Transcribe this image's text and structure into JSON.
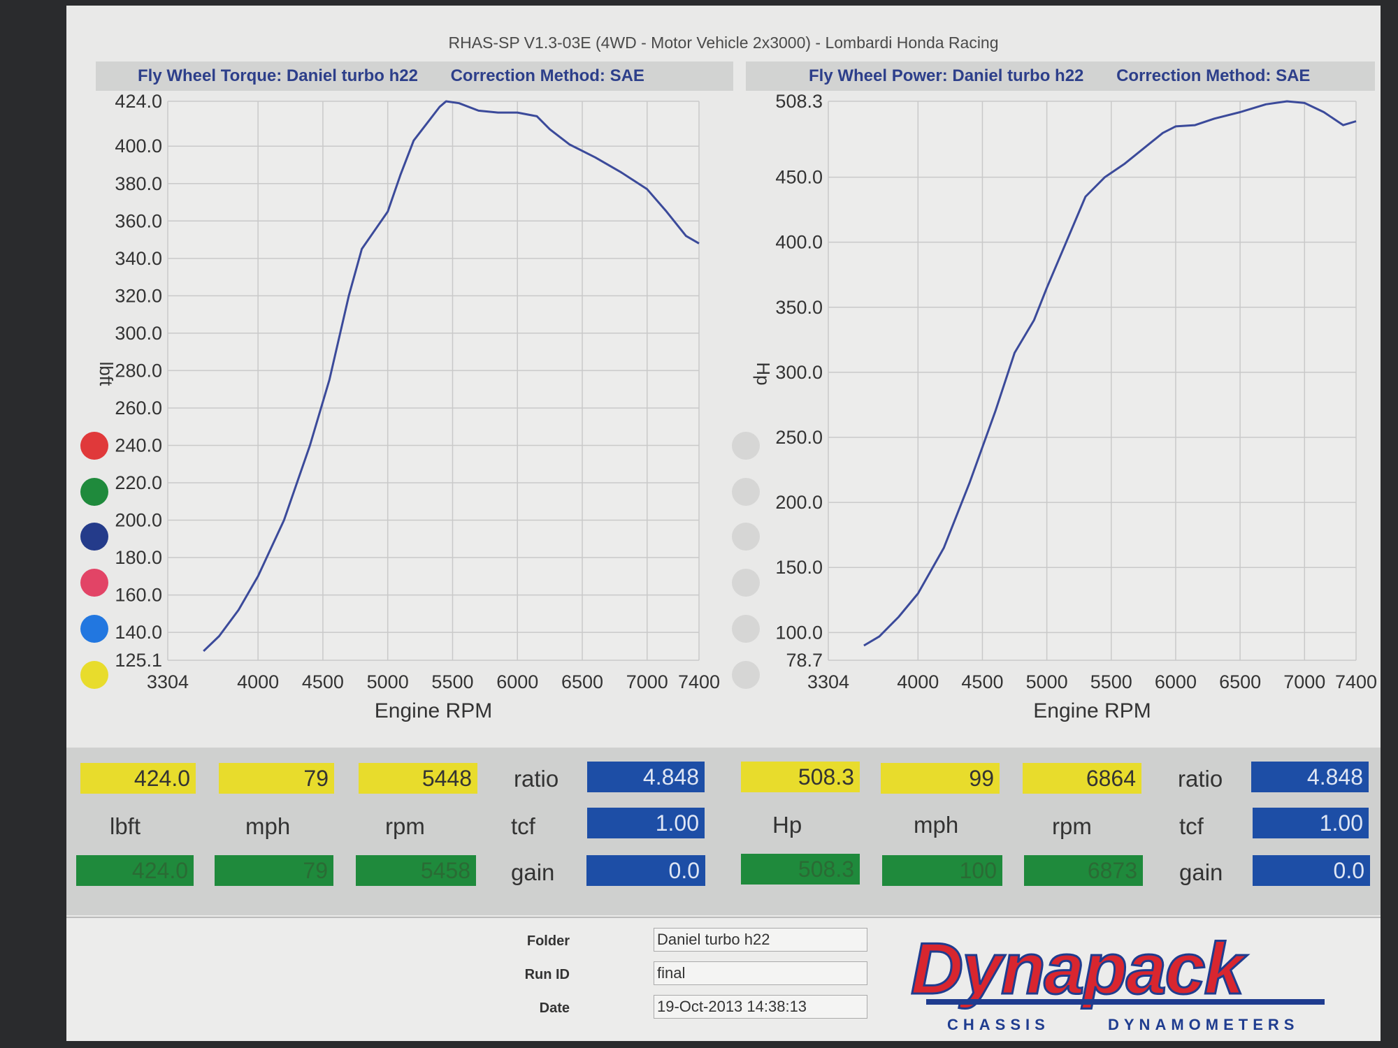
{
  "header": {
    "title": "RHAS-SP V1.3-03E (4WD - Motor Vehicle 2x3000) - Lombardi Honda Racing"
  },
  "colors": {
    "curve": "#3b4a9a",
    "grid": "#c9c9c9",
    "readout_yellow": "#e8dc2c",
    "readout_green": "#1f8a3c",
    "readout_blue": "#1d4ea6"
  },
  "chart_data": [
    {
      "type": "line",
      "heading": "Fly Wheel Torque: Daniel turbo h22",
      "correction": "Correction Method: SAE",
      "xlabel": "Engine RPM",
      "ylabel": "lbft",
      "xlim": [
        3304,
        7400
      ],
      "ylim": [
        125.1,
        424.0
      ],
      "x_ticks": [
        "3304",
        "4000",
        "4500",
        "5000",
        "5500",
        "6000",
        "6500",
        "7000",
        "7400"
      ],
      "x_tick_values": [
        3304,
        4000,
        4500,
        5000,
        5500,
        6000,
        6500,
        7000,
        7400
      ],
      "y_ticks": [
        "125.1",
        "140.0",
        "160.0",
        "180.0",
        "200.0",
        "220.0",
        "240.0",
        "260.0",
        "280.0",
        "300.0",
        "320.0",
        "340.0",
        "360.0",
        "380.0",
        "400.0",
        "424.0"
      ],
      "y_tick_values": [
        125.1,
        140,
        160,
        180,
        200,
        220,
        240,
        260,
        280,
        300,
        320,
        340,
        360,
        380,
        400,
        424
      ],
      "series": [
        {
          "x": [
            3580,
            3700,
            3850,
            4000,
            4200,
            4400,
            4550,
            4700,
            4800,
            4900,
            5000,
            5100,
            5200,
            5300,
            5400,
            5450,
            5550,
            5700,
            5850,
            6000,
            6150,
            6250,
            6400,
            6600,
            6800,
            7000,
            7150,
            7300,
            7400
          ],
          "y": [
            130,
            138,
            152,
            170,
            200,
            240,
            275,
            320,
            345,
            355,
            365,
            385,
            403,
            412,
            421,
            424,
            423,
            419,
            418,
            418,
            416,
            409,
            401,
            394,
            386,
            377,
            365,
            352,
            348
          ]
        }
      ]
    },
    {
      "type": "line",
      "heading": "Fly Wheel Power: Daniel turbo h22",
      "correction": "Correction Method: SAE",
      "xlabel": "Engine RPM",
      "ylabel": "Hp",
      "xlim": [
        3304,
        7400
      ],
      "ylim": [
        78.7,
        508.3
      ],
      "x_ticks": [
        "3304",
        "4000",
        "4500",
        "5000",
        "5500",
        "6000",
        "6500",
        "7000",
        "7400"
      ],
      "x_tick_values": [
        3304,
        4000,
        4500,
        5000,
        5500,
        6000,
        6500,
        7000,
        7400
      ],
      "y_ticks": [
        "78.7",
        "100.0",
        "150.0",
        "200.0",
        "250.0",
        "300.0",
        "350.0",
        "400.0",
        "450.0",
        "508.3"
      ],
      "y_tick_values": [
        78.7,
        100,
        150,
        200,
        250,
        300,
        350,
        400,
        450,
        508.3
      ],
      "series": [
        {
          "x": [
            3580,
            3700,
            3850,
            4000,
            4200,
            4400,
            4600,
            4750,
            4900,
            5000,
            5150,
            5300,
            5450,
            5600,
            5750,
            5900,
            6000,
            6150,
            6300,
            6500,
            6700,
            6864,
            7000,
            7150,
            7300,
            7400
          ],
          "y": [
            90,
            97,
            112,
            130,
            165,
            215,
            270,
            315,
            340,
            365,
            400,
            435,
            450,
            460,
            472,
            484,
            489,
            490,
            495,
            500,
            506,
            508.3,
            507,
            500,
            490,
            493
          ]
        }
      ]
    }
  ],
  "readouts": {
    "torque": {
      "peak_value": "424.0",
      "peak_unit": "lbft",
      "mph": "79",
      "mph_unit": "mph",
      "rpm": "5448",
      "rpm_unit": "rpm",
      "ratio_label": "ratio",
      "ratio": "4.848",
      "tcf_label": "tcf",
      "tcf": "1.00",
      "gain_label": "gain",
      "gain": "0.0",
      "cursor_value": "424.0",
      "cursor_mph": "79",
      "cursor_rpm": "5458"
    },
    "power": {
      "peak_value": "508.3",
      "peak_unit": "Hp",
      "mph": "99",
      "mph_unit": "mph",
      "rpm": "6864",
      "rpm_unit": "rpm",
      "ratio_label": "ratio",
      "ratio": "4.848",
      "tcf_label": "tcf",
      "tcf": "1.00",
      "gain_label": "gain",
      "gain": "0.0",
      "cursor_value": "508.3",
      "cursor_mph": "100",
      "cursor_rpm": "6873"
    }
  },
  "footer": {
    "folder_label": "Folder",
    "folder": "Daniel turbo h22",
    "runid_label": "Run ID",
    "runid": "final",
    "date_label": "Date",
    "date": "19-Oct-2013 14:38:13",
    "logo_text": "Dynapack",
    "logo_left": "CHASSIS",
    "logo_right": "DYNAMOMETERS"
  },
  "legend_dots": [
    "#e0393a",
    "#1f8a3c",
    "#243b8a",
    "#e24466",
    "#2277e0",
    "#e8dc2c"
  ]
}
